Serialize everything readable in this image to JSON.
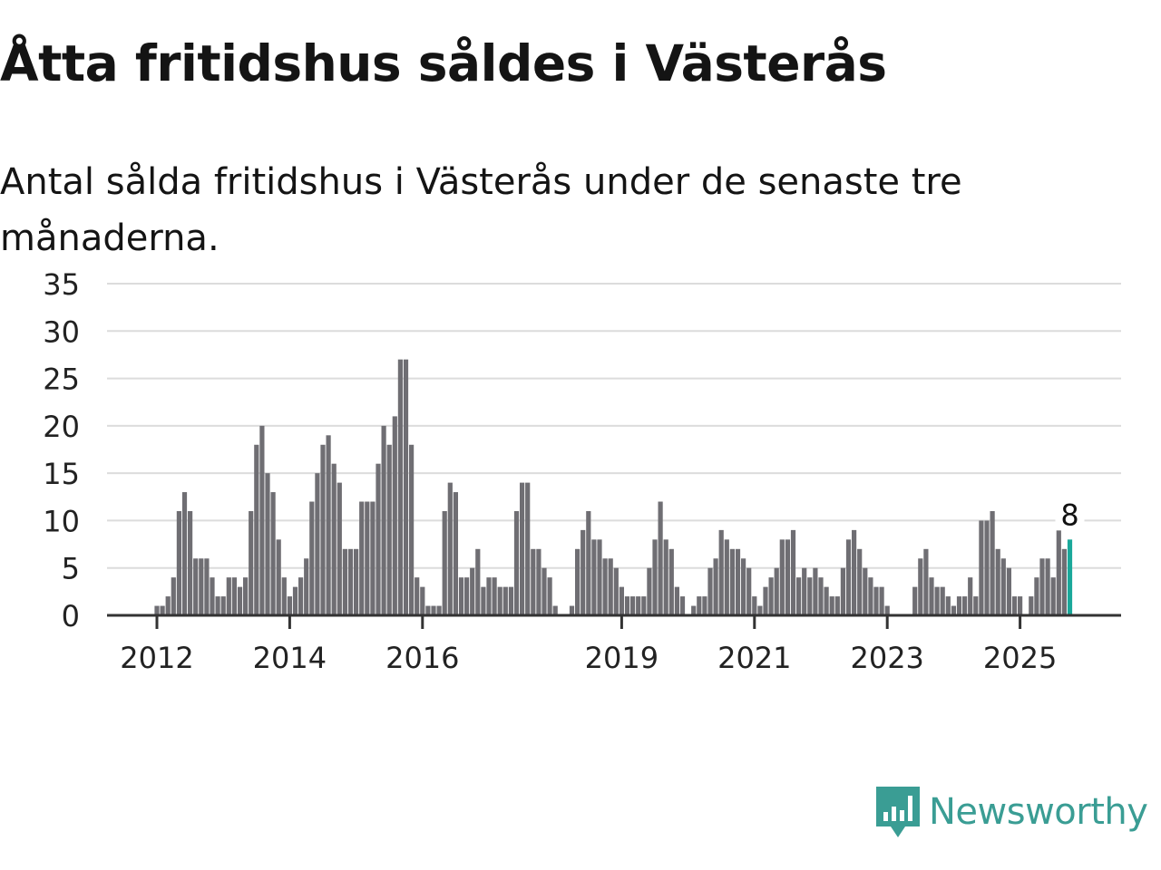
{
  "title": "Åtta fritidshus såldes i Västerås",
  "subtitle": "Antal sålda fritidshus i Västerås under de senaste tre månaderna.",
  "brand": "Newsworthy",
  "colors": {
    "bar": "#6f6e73",
    "highlight": "#1aa89a",
    "grid": "#dcdcdc",
    "axis": "#333333",
    "brand": "#3a9d94"
  },
  "chart_data": {
    "type": "bar",
    "title": "Åtta fritidshus såldes i Västerås",
    "xlabel": "",
    "ylabel": "",
    "ylim": [
      0,
      35
    ],
    "yticks": [
      "0",
      "5",
      "10",
      "15",
      "20",
      "25",
      "30",
      "35"
    ],
    "xticks": [
      {
        "label": "2012",
        "month_index": 0
      },
      {
        "label": "2014",
        "month_index": 24
      },
      {
        "label": "2016",
        "month_index": 48
      },
      {
        "label": "2019",
        "month_index": 84
      },
      {
        "label": "2021",
        "month_index": 108
      },
      {
        "label": "2023",
        "month_index": 132
      },
      {
        "label": "2025",
        "month_index": 156
      }
    ],
    "start": "2012-01",
    "frequency": "monthly",
    "values": [
      1,
      1,
      2,
      4,
      11,
      13,
      11,
      6,
      6,
      6,
      4,
      2,
      2,
      4,
      4,
      3,
      4,
      11,
      18,
      20,
      15,
      13,
      8,
      4,
      2,
      3,
      4,
      6,
      12,
      15,
      18,
      19,
      16,
      14,
      7,
      7,
      7,
      12,
      12,
      12,
      16,
      20,
      18,
      21,
      27,
      27,
      18,
      4,
      3,
      1,
      1,
      1,
      11,
      14,
      13,
      4,
      4,
      5,
      7,
      3,
      4,
      4,
      3,
      3,
      3,
      11,
      14,
      14,
      7,
      7,
      5,
      4,
      1,
      0,
      0,
      1,
      7,
      9,
      11,
      8,
      8,
      6,
      6,
      5,
      3,
      2,
      2,
      2,
      2,
      5,
      8,
      12,
      8,
      7,
      3,
      2,
      0,
      1,
      2,
      2,
      5,
      6,
      9,
      8,
      7,
      7,
      6,
      5,
      2,
      1,
      3,
      4,
      5,
      8,
      8,
      9,
      4,
      5,
      4,
      5,
      4,
      3,
      2,
      2,
      5,
      8,
      9,
      7,
      5,
      4,
      3,
      3,
      1,
      0,
      0,
      0,
      0,
      3,
      6,
      7,
      4,
      3,
      3,
      2,
      1,
      2,
      2,
      4,
      2,
      10,
      10,
      11,
      7,
      6,
      5,
      2,
      2,
      0,
      2,
      4,
      6,
      6,
      4,
      9,
      7,
      8
    ],
    "highlight_label": "8",
    "grid": true
  }
}
